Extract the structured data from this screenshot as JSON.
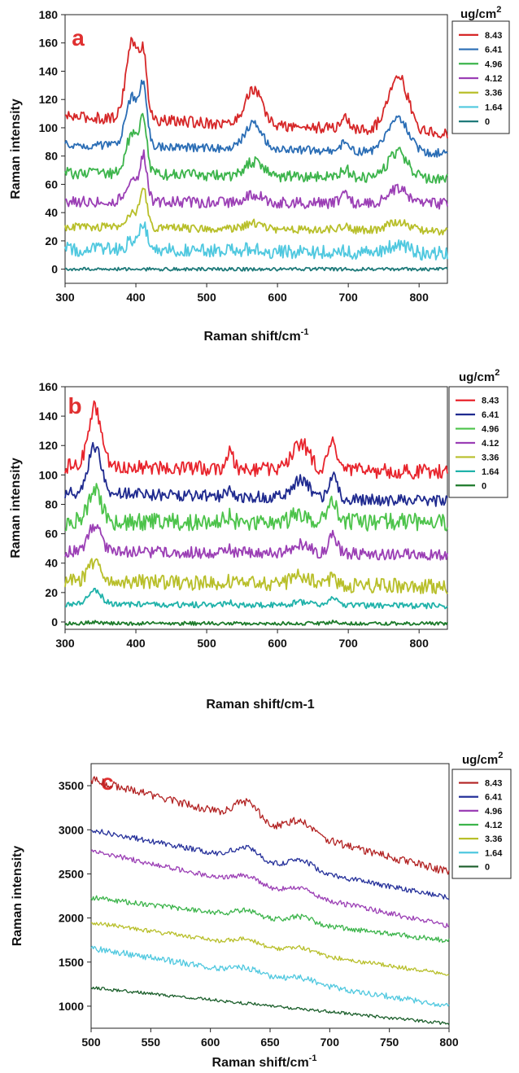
{
  "chart_data": [
    {
      "type": "line",
      "panel_label": "a",
      "ylabel": "Raman intensity",
      "xlabel": "Raman shift/cm",
      "xlabel_sup": "-1",
      "legend_title": "ug/cm",
      "legend_title_sup": "2",
      "xlim": [
        300,
        840
      ],
      "ylim": [
        -10,
        180
      ],
      "xticks": [
        300,
        400,
        500,
        600,
        700,
        800
      ],
      "yticks": [
        0,
        20,
        40,
        60,
        80,
        100,
        120,
        140,
        160,
        180
      ],
      "legend_placement": "outside-right",
      "peaks": [
        395,
        411,
        566,
        695,
        770
      ],
      "series": [
        {
          "name": "8.43",
          "color": "#d62728",
          "baseline": 108,
          "end": 96,
          "amplitude": [
            55,
            40,
            25,
            8,
            40
          ],
          "noise": 4
        },
        {
          "name": "6.41",
          "color": "#2a6db5",
          "baseline": 88,
          "end": 82,
          "amplitude": [
            35,
            38,
            18,
            6,
            25
          ],
          "noise": 3
        },
        {
          "name": "4.96",
          "color": "#3cb44b",
          "baseline": 68,
          "end": 64,
          "amplitude": [
            28,
            35,
            10,
            6,
            18
          ],
          "noise": 4
        },
        {
          "name": "4.12",
          "color": "#9b3fb5",
          "baseline": 48,
          "end": 46,
          "amplitude": [
            15,
            30,
            6,
            6,
            10
          ],
          "noise": 4
        },
        {
          "name": "3.36",
          "color": "#b8bf2a",
          "baseline": 30,
          "end": 27,
          "amplitude": [
            10,
            25,
            4,
            2,
            6
          ],
          "noise": 3
        },
        {
          "name": "1.64",
          "color": "#4fc8df",
          "baseline": 14,
          "end": 11,
          "amplitude": [
            6,
            18,
            2,
            2,
            6
          ],
          "noise": 5
        },
        {
          "name": "0",
          "color": "#1f7a7a",
          "baseline": 0,
          "end": 0,
          "amplitude": [
            0,
            0,
            0,
            0,
            0
          ],
          "noise": 1.2
        }
      ]
    },
    {
      "type": "line",
      "panel_label": "b",
      "ylabel": "Raman intensity",
      "xlabel": "Raman shift/cm-1",
      "xlabel_sup": "",
      "legend_title": "ug/cm",
      "legend_title_sup": "2",
      "xlim": [
        300,
        840
      ],
      "ylim": [
        -5,
        160
      ],
      "xticks": [
        300,
        400,
        500,
        600,
        700,
        800
      ],
      "yticks": [
        0,
        20,
        40,
        60,
        80,
        100,
        120,
        140,
        160
      ],
      "legend_placement": "outside-right",
      "peaks": [
        342,
        532,
        633,
        678
      ],
      "series": [
        {
          "name": "8.43",
          "color": "#e8242c",
          "baseline": 106,
          "end": 102,
          "amplitude": [
            40,
            12,
            18,
            18
          ],
          "noise": 5
        },
        {
          "name": "6.41",
          "color": "#1f2a8f",
          "baseline": 88,
          "end": 82,
          "amplitude": [
            32,
            4,
            12,
            15
          ],
          "noise": 4
        },
        {
          "name": "4.96",
          "color": "#4cc34a",
          "baseline": 68,
          "end": 68,
          "amplitude": [
            22,
            4,
            6,
            14
          ],
          "noise": 6
        },
        {
          "name": "4.12",
          "color": "#9b3fb5",
          "baseline": 48,
          "end": 46,
          "amplitude": [
            18,
            2,
            6,
            12
          ],
          "noise": 4
        },
        {
          "name": "3.36",
          "color": "#b8bf2a",
          "baseline": 28,
          "end": 24,
          "amplitude": [
            14,
            2,
            6,
            4
          ],
          "noise": 5
        },
        {
          "name": "1.64",
          "color": "#20b2aa",
          "baseline": 12,
          "end": 11,
          "amplitude": [
            10,
            2,
            2,
            6
          ],
          "noise": 2
        },
        {
          "name": "0",
          "color": "#1c7a2a",
          "baseline": -1,
          "end": -1,
          "amplitude": [
            1,
            0,
            0,
            1
          ],
          "noise": 1.2
        }
      ]
    },
    {
      "type": "line",
      "panel_label": "c",
      "ylabel": "Raman intensity",
      "xlabel": "Raman shift/cm",
      "xlabel_sup": "-1",
      "legend_title": "ug/cm",
      "legend_title_sup": "2",
      "xlim": [
        500,
        800
      ],
      "ylim": [
        750,
        3750
      ],
      "xticks": [
        500,
        550,
        600,
        650,
        700,
        750,
        800
      ],
      "yticks": [
        1000,
        1500,
        2000,
        2500,
        3000,
        3500
      ],
      "legend_placement": "outside-right",
      "peaks": [
        630,
        676
      ],
      "series": [
        {
          "name": "8.43",
          "color": "#b22222",
          "baseline": 3570,
          "end": 2520,
          "amplitude": [
            200,
            150
          ],
          "noise": 45
        },
        {
          "name": "6.41",
          "color": "#25309a",
          "baseline": 3000,
          "end": 2230,
          "amplitude": [
            140,
            110
          ],
          "noise": 30
        },
        {
          "name": "4.96",
          "color": "#9b3fb5",
          "baseline": 2760,
          "end": 1910,
          "amplitude": [
            90,
            80
          ],
          "noise": 30
        },
        {
          "name": "4.12",
          "color": "#3cb44b",
          "baseline": 2230,
          "end": 1740,
          "amplitude": [
            70,
            70
          ],
          "noise": 30
        },
        {
          "name": "3.36",
          "color": "#b8bf2a",
          "baseline": 1950,
          "end": 1360,
          "amplitude": [
            70,
            60
          ],
          "noise": 25
        },
        {
          "name": "1.64",
          "color": "#4fc8df",
          "baseline": 1660,
          "end": 1000,
          "amplitude": [
            60,
            50
          ],
          "noise": 35
        },
        {
          "name": "0",
          "color": "#1a5e2a",
          "baseline": 1210,
          "end": 800,
          "amplitude": [
            0,
            0
          ],
          "noise": 18
        }
      ]
    }
  ]
}
